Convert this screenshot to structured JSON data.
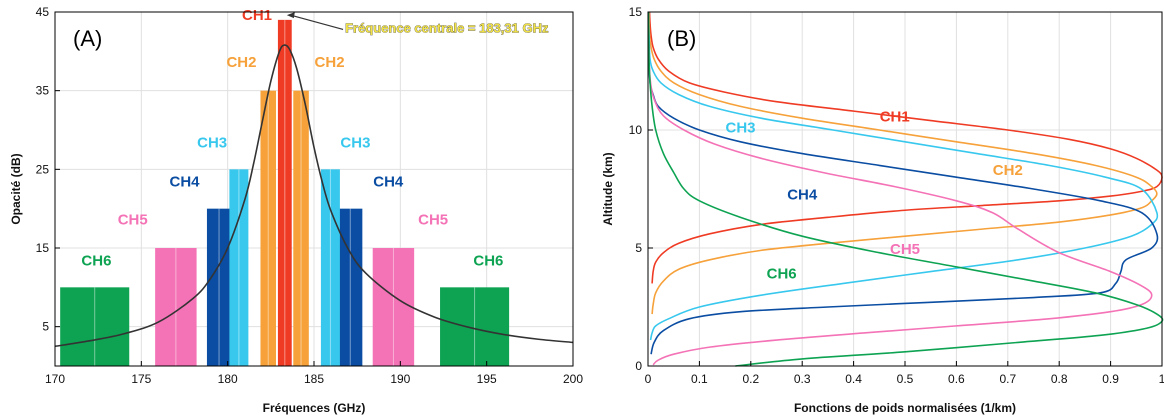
{
  "chart_data": [
    {
      "type": "bar",
      "panel_label": "(A)",
      "xlabel": "Fréquences (GHz)",
      "ylabel": "Opacité (dB)",
      "xlim": [
        170,
        200
      ],
      "ylim": [
        0,
        45
      ],
      "xticks": [
        170,
        175,
        180,
        185,
        190,
        195,
        200
      ],
      "yticks": [
        5,
        15,
        25,
        35,
        45
      ],
      "grid": true,
      "annotation": "Fréquence centrale = 183,31 GHz",
      "center_frequency": 183.31,
      "channels": [
        {
          "name": "CH1",
          "color": "#ef3b24",
          "value": 44,
          "bands": [
            [
              182.91,
              183.71
            ]
          ]
        },
        {
          "name": "CH2",
          "color": "#f6a13a",
          "value": 35,
          "bands": [
            [
              181.9,
              182.8
            ],
            [
              183.8,
              184.7
            ]
          ]
        },
        {
          "name": "CH3",
          "color": "#38c8ee",
          "value": 25,
          "bands": [
            [
              180.1,
              181.2
            ],
            [
              185.4,
              186.5
            ]
          ]
        },
        {
          "name": "CH4",
          "color": "#0a4da2",
          "value": 20,
          "bands": [
            [
              178.8,
              180.2
            ],
            [
              186.4,
              187.8
            ]
          ]
        },
        {
          "name": "CH5",
          "color": "#f472b6",
          "value": 15,
          "bands": [
            [
              175.8,
              178.2
            ],
            [
              188.4,
              190.8
            ]
          ]
        },
        {
          "name": "CH6",
          "color": "#0da352",
          "value": 10,
          "bands": [
            [
              170.3,
              174.3
            ],
            [
              192.3,
              196.3
            ]
          ]
        }
      ],
      "labels": [
        {
          "text": "CH1",
          "channel": "CH1",
          "x": 181.7,
          "y": 44
        },
        {
          "text": "CH2",
          "channel": "CH2",
          "x": 180.8,
          "y": 38
        },
        {
          "text": "CH2",
          "channel": "CH2",
          "x": 185.9,
          "y": 38
        },
        {
          "text": "CH3",
          "channel": "CH3",
          "x": 179.1,
          "y": 27.8
        },
        {
          "text": "CH3",
          "channel": "CH3",
          "x": 187.4,
          "y": 27.8
        },
        {
          "text": "CH4",
          "channel": "CH4",
          "x": 177.5,
          "y": 22.8
        },
        {
          "text": "CH4",
          "channel": "CH4",
          "x": 189.3,
          "y": 22.8
        },
        {
          "text": "CH5",
          "channel": "CH5",
          "x": 174.5,
          "y": 18
        },
        {
          "text": "CH5",
          "channel": "CH5",
          "x": 191.9,
          "y": 18
        },
        {
          "text": "CH6",
          "channel": "CH6",
          "x": 172.4,
          "y": 12.8
        },
        {
          "text": "CH6",
          "channel": "CH6",
          "x": 195.1,
          "y": 12.8
        }
      ],
      "absorption_line": {
        "color": "#333333",
        "x": [
          170,
          172,
          174,
          176,
          178,
          179,
          180,
          181,
          181.5,
          182,
          182.5,
          183,
          183.3,
          183.6,
          184,
          184.5,
          185,
          185.5,
          186,
          187,
          188,
          190,
          192,
          194,
          196,
          198,
          200
        ],
        "y": [
          2.5,
          3.2,
          4.1,
          5.6,
          8.6,
          11.1,
          15.0,
          21.2,
          25.7,
          31.0,
          36.2,
          40.0,
          40.8,
          40.2,
          37.8,
          33.2,
          27.8,
          23.2,
          19.6,
          14.8,
          11.8,
          8.3,
          6.2,
          4.9,
          4.0,
          3.4,
          3.0
        ]
      }
    },
    {
      "type": "line",
      "panel_label": "(B)",
      "xlabel": "Fonctions de poids normalisées (1/km)",
      "ylabel": "Altitude (km)",
      "xlim": [
        0,
        1
      ],
      "ylim": [
        0,
        15
      ],
      "xticks": [
        0,
        0.1,
        0.2,
        0.3,
        0.4,
        0.5,
        0.6,
        0.7,
        0.8,
        0.9,
        1
      ],
      "yticks": [
        0,
        5,
        10,
        15
      ],
      "grid": true,
      "series": [
        {
          "name": "CH1",
          "color": "#ef3b24",
          "x": [
            0.003,
            0.004,
            0.006,
            0.01,
            0.02,
            0.04,
            0.08,
            0.15,
            0.25,
            0.4,
            0.55,
            0.7,
            0.82,
            0.9,
            0.95,
            0.99,
            1.0,
            0.99,
            0.96,
            0.9,
            0.8,
            0.65,
            0.5,
            0.35,
            0.22,
            0.12,
            0.06,
            0.03,
            0.015,
            0.01,
            0.008
          ],
          "y": [
            15,
            14.5,
            14,
            13.5,
            13,
            12.5,
            12,
            11.6,
            11.2,
            10.8,
            10.4,
            10,
            9.6,
            9.2,
            8.8,
            8.3,
            8,
            7.6,
            7.4,
            7.2,
            7,
            6.8,
            6.6,
            6.3,
            6,
            5.6,
            5.2,
            4.8,
            4.4,
            4,
            3.5
          ],
          "label": {
            "text": "CH1",
            "x": 0.48,
            "y": 10.35
          }
        },
        {
          "name": "CH2",
          "color": "#f6a13a",
          "x": [
            0.002,
            0.003,
            0.006,
            0.012,
            0.025,
            0.05,
            0.1,
            0.18,
            0.3,
            0.45,
            0.6,
            0.75,
            0.87,
            0.95,
            0.98,
            0.99,
            0.98,
            0.96,
            0.9,
            0.8,
            0.65,
            0.5,
            0.35,
            0.22,
            0.12,
            0.06,
            0.03,
            0.015,
            0.01,
            0.008
          ],
          "y": [
            15,
            14,
            13.5,
            13,
            12.5,
            12,
            11.5,
            11,
            10.5,
            10,
            9.5,
            9,
            8.5,
            8,
            7.6,
            7.3,
            7,
            6.7,
            6.4,
            6.1,
            5.8,
            5.5,
            5.2,
            4.9,
            4.5,
            4.1,
            3.6,
            3.1,
            2.6,
            2.2
          ],
          "label": {
            "text": "CH2",
            "x": 0.7,
            "y": 8.1
          }
        },
        {
          "name": "CH3",
          "color": "#38c8ee",
          "x": [
            0.001,
            0.002,
            0.004,
            0.01,
            0.025,
            0.06,
            0.12,
            0.22,
            0.36,
            0.5,
            0.64,
            0.78,
            0.89,
            0.96,
            0.99,
            0.98,
            0.94,
            0.85,
            0.72,
            0.55,
            0.38,
            0.22,
            0.1,
            0.04,
            0.015,
            0.008,
            0.005
          ],
          "y": [
            15,
            14,
            13,
            12.5,
            12,
            11.5,
            11,
            10.5,
            10,
            9.5,
            9,
            8.5,
            8,
            7.5,
            6.5,
            6,
            5.5,
            5,
            4.5,
            4,
            3.5,
            3,
            2.5,
            2,
            1.7,
            1.4,
            1.1
          ],
          "label": {
            "text": "CH3",
            "x": 0.18,
            "y": 9.9
          }
        },
        {
          "name": "CH4",
          "color": "#0a4da2",
          "x": [
            0.001,
            0.002,
            0.004,
            0.01,
            0.02,
            0.05,
            0.1,
            0.18,
            0.3,
            0.45,
            0.6,
            0.75,
            0.88,
            0.96,
            0.99,
            0.98,
            0.93,
            0.92,
            0.91,
            0.88,
            0.75,
            0.55,
            0.35,
            0.18,
            0.08,
            0.03,
            0.012,
            0.006
          ],
          "y": [
            15,
            13,
            12,
            11.5,
            11,
            10.5,
            10,
            9.5,
            9,
            8.5,
            8,
            7.5,
            7,
            6.5,
            5.6,
            5,
            4.5,
            4,
            3.5,
            3.1,
            2.9,
            2.7,
            2.5,
            2.3,
            2,
            1.5,
            1,
            0.5
          ],
          "label": {
            "text": "CH4",
            "x": 0.3,
            "y": 7.05
          }
        },
        {
          "name": "CH5",
          "color": "#f472b6",
          "x": [
            0.001,
            0.002,
            0.005,
            0.012,
            0.03,
            0.07,
            0.13,
            0.22,
            0.34,
            0.48,
            0.6,
            0.67,
            0.72,
            0.8,
            0.9,
            0.96,
            0.98,
            0.96,
            0.9,
            0.78,
            0.6,
            0.42,
            0.25,
            0.12,
            0.05,
            0.02,
            0.01
          ],
          "y": [
            15,
            13,
            12,
            11.3,
            10.6,
            10,
            9.4,
            8.8,
            8.2,
            7.6,
            7,
            6.5,
            5.8,
            4.8,
            4,
            3.4,
            3,
            2.6,
            2.3,
            2,
            1.7,
            1.4,
            1.1,
            0.8,
            0.5,
            0.25,
            0.05
          ],
          "label": {
            "text": "CH5",
            "x": 0.5,
            "y": 4.75
          }
        },
        {
          "name": "CH6",
          "color": "#0da352",
          "x": [
            0.001,
            0.002,
            0.004,
            0.008,
            0.015,
            0.03,
            0.05,
            0.07,
            0.1,
            0.18,
            0.3,
            0.45,
            0.6,
            0.75,
            0.87,
            0.95,
            0.99,
            1.0,
            0.97,
            0.88,
            0.72,
            0.5,
            0.3,
            0.17
          ],
          "y": [
            15,
            13,
            12,
            11,
            10,
            9,
            8.2,
            7.5,
            7,
            6.3,
            5.5,
            4.8,
            4.2,
            3.6,
            3.1,
            2.6,
            2.2,
            1.9,
            1.6,
            1.3,
            1,
            0.6,
            0.3,
            0
          ],
          "label": {
            "text": "CH6",
            "x": 0.26,
            "y": 3.7
          }
        }
      ]
    }
  ]
}
